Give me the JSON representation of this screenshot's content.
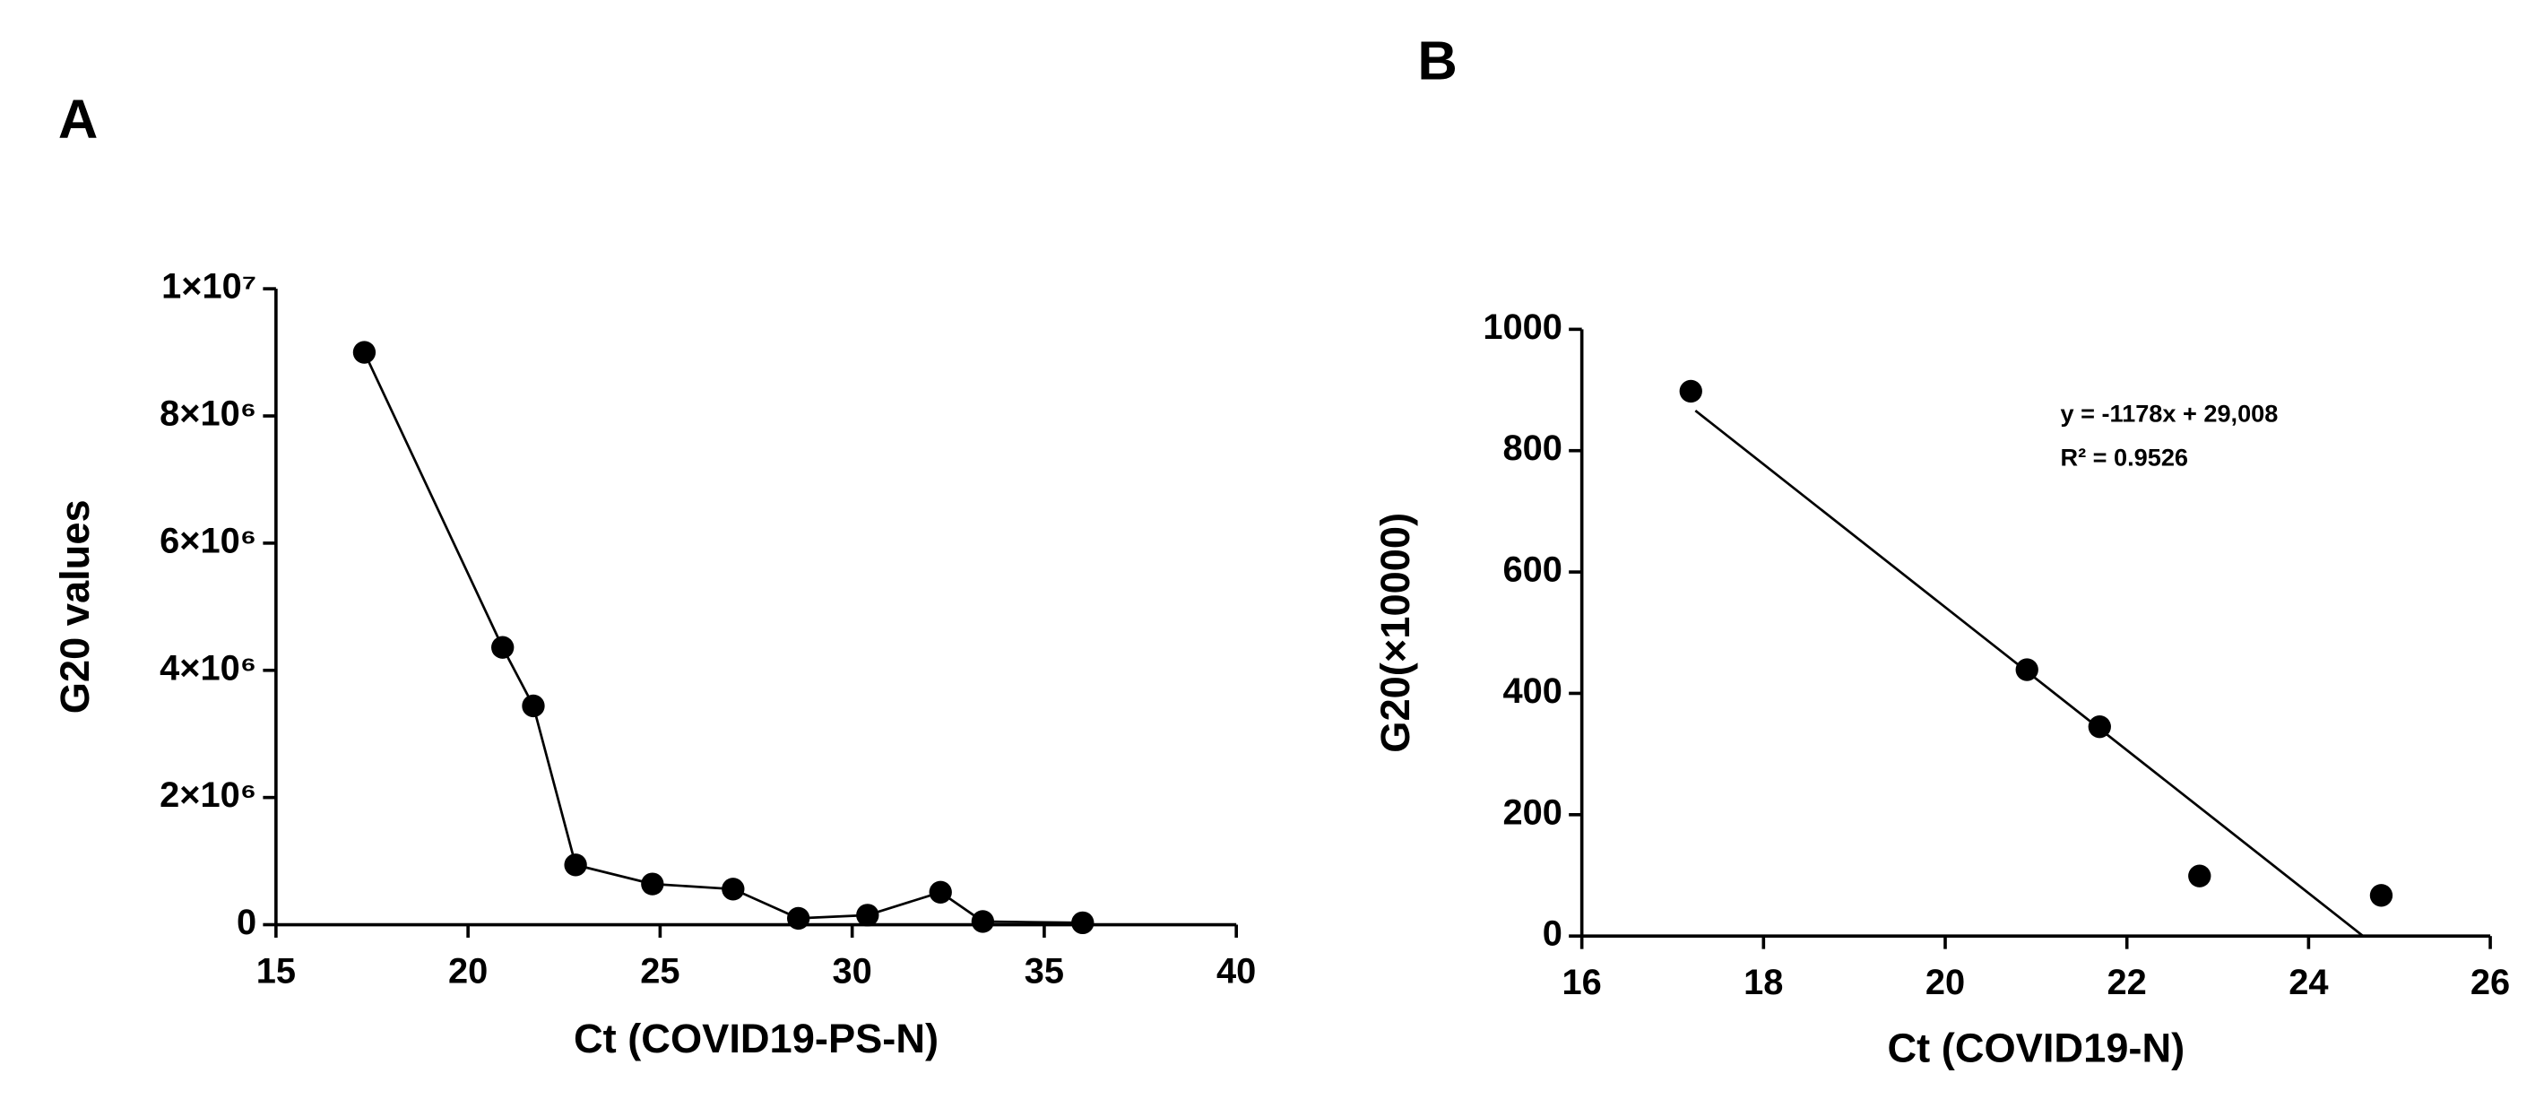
{
  "chart_data": [
    {
      "type": "line",
      "panel": "A",
      "x_label": "Ct (COVID19-PS-N)",
      "y_label": "G20 values",
      "x": [
        17.3,
        20.9,
        21.7,
        22.8,
        24.8,
        26.9,
        28.6,
        30.4,
        32.3,
        33.4,
        36.0
      ],
      "series": [
        {
          "color": "#000000",
          "values": [
            9000000,
            4360000,
            3440000,
            940000,
            640000,
            560000,
            100000,
            150000,
            510000,
            50000,
            30000
          ]
        }
      ],
      "xlim": [
        15,
        40
      ],
      "xticks": [
        15,
        20,
        25,
        30,
        35,
        40
      ],
      "ylim": [
        0,
        10000000
      ],
      "yticks": [
        0,
        {
          "value": 2000000,
          "label": "2×10⁶"
        },
        {
          "value": 4000000,
          "label": "4×10⁶"
        },
        {
          "value": 6000000,
          "label": "6×10⁶"
        },
        {
          "value": 8000000,
          "label": "8×10⁶"
        },
        {
          "value": 10000000,
          "label": "1×10⁷"
        }
      ]
    },
    {
      "type": "scatter",
      "panel": "B",
      "x_label": "Ct (COVID19-N)",
      "y_label": "G20(×10000)",
      "x": [
        17.2,
        20.9,
        21.7,
        22.8,
        24.8
      ],
      "series": [
        {
          "color": "#000000",
          "values": [
            898,
            439,
            345,
            99,
            67
          ]
        }
      ],
      "fit": {
        "x": [
          17.25,
          24.6
        ],
        "y": [
          866,
          0
        ]
      },
      "annotations": [
        "y = -1178x + 29,008",
        "R² = 0.9526"
      ],
      "xlim": [
        16,
        26
      ],
      "xticks": [
        16,
        18,
        20,
        22,
        24,
        26
      ],
      "ylim": [
        0,
        1000
      ],
      "yticks": [
        0,
        200,
        400,
        600,
        800,
        1000
      ]
    }
  ]
}
